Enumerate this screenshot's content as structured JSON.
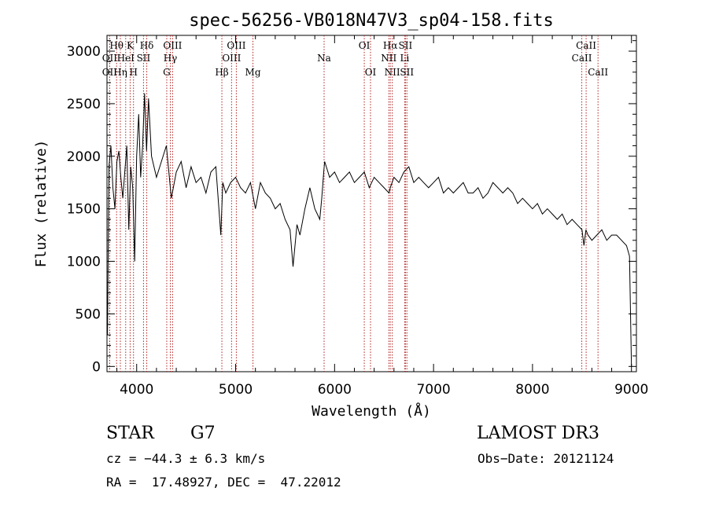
{
  "chart_data": {
    "type": "line",
    "title": "spec-56256-VB018N47V3_sp04-158.fits",
    "xlabel": "Wavelength (Å)",
    "ylabel": "Flux (relative)",
    "xlim": [
      3700,
      9050
    ],
    "ylim": [
      -50,
      3150
    ],
    "xticks": [
      4000,
      5000,
      6000,
      7000,
      8000,
      9000
    ],
    "yticks": [
      0,
      500,
      1000,
      1500,
      2000,
      2500,
      3000
    ],
    "grid": false,
    "line_color": "#000000",
    "marker_color": "#b22222",
    "series": [
      {
        "x": [
          3705,
          3720,
          3740,
          3760,
          3780,
          3800,
          3820,
          3840,
          3860,
          3880,
          3900,
          3920,
          3940,
          3960,
          3980,
          4000,
          4020,
          4040,
          4060,
          4080,
          4100,
          4120,
          4150,
          4200,
          4250,
          4300,
          4350,
          4400,
          4450,
          4500,
          4550,
          4600,
          4650,
          4700,
          4750,
          4800,
          4850,
          4870,
          4900,
          4950,
          5000,
          5050,
          5100,
          5150,
          5200,
          5250,
          5300,
          5350,
          5400,
          5450,
          5500,
          5550,
          5580,
          5620,
          5650,
          5700,
          5750,
          5800,
          5850,
          5870,
          5890,
          5900,
          5950,
          6000,
          6050,
          6100,
          6150,
          6200,
          6250,
          6300,
          6350,
          6400,
          6450,
          6500,
          6550,
          6563,
          6600,
          6650,
          6700,
          6750,
          6800,
          6850,
          6900,
          6950,
          7000,
          7050,
          7100,
          7150,
          7200,
          7250,
          7300,
          7350,
          7400,
          7450,
          7500,
          7550,
          7600,
          7650,
          7700,
          7750,
          7800,
          7850,
          7900,
          7950,
          8000,
          8050,
          8100,
          8150,
          8200,
          8250,
          8300,
          8350,
          8400,
          8450,
          8500,
          8520,
          8540,
          8560,
          8600,
          8650,
          8700,
          8750,
          8800,
          8850,
          8900,
          8950,
          8980,
          9000
        ],
        "y": [
          300,
          1900,
          2100,
          1700,
          1500,
          1950,
          2050,
          1800,
          1600,
          1850,
          2100,
          1300,
          1900,
          1700,
          1000,
          2000,
          2400,
          1800,
          2100,
          2600,
          2050,
          2550,
          2000,
          1800,
          1950,
          2100,
          1600,
          1850,
          1950,
          1700,
          1900,
          1750,
          1800,
          1650,
          1850,
          1900,
          1250,
          1750,
          1650,
          1750,
          1800,
          1700,
          1650,
          1750,
          1500,
          1750,
          1650,
          1600,
          1500,
          1550,
          1400,
          1300,
          950,
          1350,
          1250,
          1500,
          1700,
          1500,
          1400,
          1600,
          1850,
          1950,
          1800,
          1850,
          1750,
          1800,
          1850,
          1750,
          1800,
          1850,
          1700,
          1800,
          1750,
          1700,
          1650,
          1700,
          1800,
          1750,
          1850,
          1900,
          1750,
          1800,
          1750,
          1700,
          1750,
          1800,
          1650,
          1700,
          1650,
          1700,
          1750,
          1650,
          1650,
          1700,
          1600,
          1650,
          1750,
          1700,
          1650,
          1700,
          1650,
          1550,
          1600,
          1550,
          1500,
          1550,
          1450,
          1500,
          1450,
          1400,
          1450,
          1350,
          1400,
          1350,
          1300,
          1150,
          1300,
          1250,
          1200,
          1250,
          1300,
          1200,
          1250,
          1250,
          1200,
          1150,
          1050,
          0
        ]
      }
    ],
    "lines": [
      {
        "label": "Hθ",
        "x": 3797,
        "row": 1
      },
      {
        "label": "OII",
        "x": 3727,
        "row": 2
      },
      {
        "label": "OII",
        "x": 3727,
        "row": 3
      },
      {
        "label": "Hη",
        "x": 3835,
        "row": 3
      },
      {
        "label": "HeI",
        "x": 3889,
        "row": 2
      },
      {
        "label": "K",
        "x": 3934,
        "row": 1
      },
      {
        "label": "H",
        "x": 3968,
        "row": 3
      },
      {
        "label": "SII",
        "x": 4069,
        "row": 2
      },
      {
        "label": "Hδ",
        "x": 4102,
        "row": 1
      },
      {
        "label": "OIII",
        "x": 4363,
        "row": 1
      },
      {
        "label": "Hγ",
        "x": 4340,
        "row": 2
      },
      {
        "label": "G",
        "x": 4304,
        "row": 3
      },
      {
        "label": "Hβ",
        "x": 4861,
        "row": 3
      },
      {
        "label": "OIII",
        "x": 5007,
        "row": 1
      },
      {
        "label": "OIII",
        "x": 4959,
        "row": 2
      },
      {
        "label": "Mg",
        "x": 5175,
        "row": 3
      },
      {
        "label": "Na",
        "x": 5894,
        "row": 2
      },
      {
        "label": "OI",
        "x": 6300,
        "row": 1
      },
      {
        "label": "OI",
        "x": 6363,
        "row": 3
      },
      {
        "label": "Hα",
        "x": 6563,
        "row": 1
      },
      {
        "label": "SII",
        "x": 6716,
        "row": 1
      },
      {
        "label": "NII",
        "x": 6548,
        "row": 2
      },
      {
        "label": "Li",
        "x": 6708,
        "row": 2
      },
      {
        "label": "NII",
        "x": 6583,
        "row": 3
      },
      {
        "label": "SII",
        "x": 6731,
        "row": 3
      },
      {
        "label": "CaII",
        "x": 8542,
        "row": 1
      },
      {
        "label": "CaII",
        "x": 8498,
        "row": 2
      },
      {
        "label": "CaII",
        "x": 8662,
        "row": 3
      }
    ]
  },
  "info": {
    "object_class": "STAR",
    "subclass": "G7",
    "survey": "LAMOST DR3",
    "cz": "cz = −44.3 ± 6.3 km/s",
    "obs_date": "Obs−Date: 20121124",
    "radec": "RA =  17.48927, DEC =  47.22012"
  }
}
